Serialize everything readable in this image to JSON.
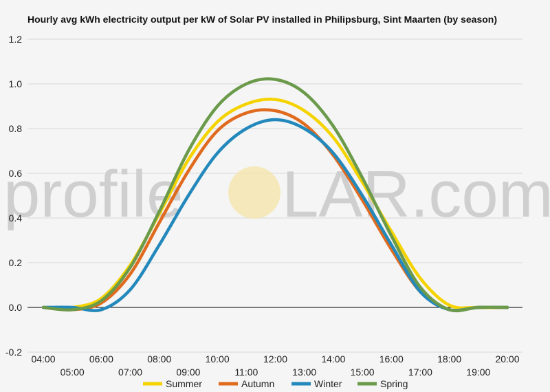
{
  "chart_data": {
    "type": "line",
    "title": "Hourly avg kWh electricity output per kW of Solar PV installed in Philipsburg, Sint Maarten (by season)",
    "xlabel": "",
    "ylabel": "",
    "ylim": [
      -0.2,
      1.2
    ],
    "yticks": [
      "-0.2",
      "0.0",
      "0.2",
      "0.4",
      "0.6",
      "0.8",
      "1.0",
      "1.2"
    ],
    "x": [
      "04:00",
      "05:00",
      "06:00",
      "07:00",
      "08:00",
      "09:00",
      "10:00",
      "11:00",
      "12:00",
      "13:00",
      "14:00",
      "15:00",
      "16:00",
      "17:00",
      "18:00",
      "19:00",
      "20:00"
    ],
    "grid": true,
    "legend_position": "bottom",
    "series": [
      {
        "name": "Summer",
        "color": "#f5d300",
        "values": [
          0.0,
          0.0,
          0.04,
          0.19,
          0.42,
          0.66,
          0.83,
          0.91,
          0.93,
          0.88,
          0.76,
          0.56,
          0.34,
          0.13,
          0.01,
          0.0,
          0.0
        ]
      },
      {
        "name": "Autumn",
        "color": "#e06b1f",
        "values": [
          0.0,
          -0.01,
          0.02,
          0.15,
          0.38,
          0.61,
          0.79,
          0.87,
          0.88,
          0.82,
          0.68,
          0.48,
          0.26,
          0.07,
          -0.01,
          0.0,
          0.0
        ]
      },
      {
        "name": "Winter",
        "color": "#2388bb",
        "values": [
          0.0,
          0.0,
          -0.01,
          0.08,
          0.28,
          0.5,
          0.69,
          0.8,
          0.84,
          0.8,
          0.69,
          0.5,
          0.28,
          0.07,
          -0.01,
          0.0,
          0.0
        ]
      },
      {
        "name": "Spring",
        "color": "#6a9a4a",
        "values": [
          0.0,
          -0.01,
          0.03,
          0.18,
          0.43,
          0.7,
          0.9,
          1.0,
          1.02,
          0.96,
          0.81,
          0.58,
          0.32,
          0.09,
          -0.01,
          0.0,
          0.0
        ]
      }
    ]
  },
  "watermark": {
    "left_text": "profile",
    "right_text": "LAR.com"
  }
}
